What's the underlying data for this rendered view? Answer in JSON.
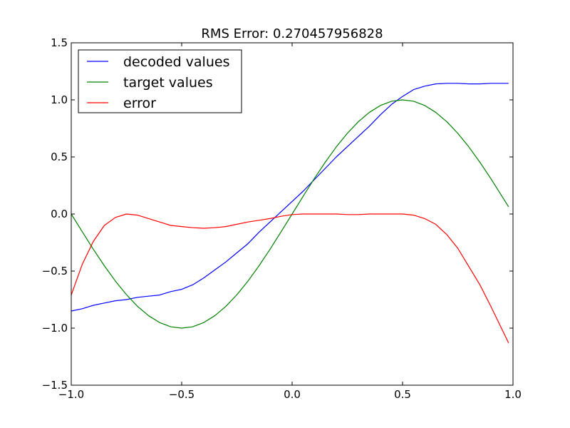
{
  "chart_data": {
    "type": "line",
    "title": "RMS Error: 0.270457956828",
    "xlabel": "",
    "ylabel": "",
    "xlim": [
      -1.0,
      1.0
    ],
    "ylim": [
      -1.5,
      1.5
    ],
    "grid": false,
    "legend_position": "top-left",
    "x_ticks": [
      -1.0,
      -0.5,
      0.0,
      0.5,
      1.0
    ],
    "x_tick_labels": [
      "−1.0",
      "−0.5",
      "0.0",
      "0.5",
      "1.0"
    ],
    "y_ticks": [
      -1.5,
      -1.0,
      -0.5,
      0.0,
      0.5,
      1.0,
      1.5
    ],
    "y_tick_labels": [
      "−1.5",
      "−1.0",
      "−0.5",
      "0.0",
      "0.5",
      "1.0",
      "1.5"
    ],
    "series": [
      {
        "name": "decoded values",
        "color": "#0000ff",
        "x": [
          -1.0,
          -0.95,
          -0.9,
          -0.85,
          -0.8,
          -0.75,
          -0.7,
          -0.65,
          -0.6,
          -0.55,
          -0.5,
          -0.45,
          -0.4,
          -0.35,
          -0.3,
          -0.25,
          -0.2,
          -0.15,
          -0.1,
          -0.05,
          0.0,
          0.05,
          0.1,
          0.15,
          0.2,
          0.25,
          0.3,
          0.35,
          0.4,
          0.45,
          0.5,
          0.55,
          0.6,
          0.65,
          0.7,
          0.75,
          0.8,
          0.85,
          0.9,
          0.95,
          0.98
        ],
        "y": [
          -0.85,
          -0.83,
          -0.8,
          -0.78,
          -0.76,
          -0.75,
          -0.73,
          -0.72,
          -0.71,
          -0.68,
          -0.66,
          -0.62,
          -0.56,
          -0.49,
          -0.42,
          -0.34,
          -0.26,
          -0.16,
          -0.07,
          0.02,
          0.11,
          0.2,
          0.3,
          0.4,
          0.5,
          0.59,
          0.68,
          0.77,
          0.87,
          0.96,
          1.03,
          1.09,
          1.12,
          1.14,
          1.145,
          1.145,
          1.14,
          1.14,
          1.145,
          1.145,
          1.145
        ]
      },
      {
        "name": "target values",
        "color": "#008000",
        "x": [
          -1.0,
          -0.95,
          -0.9,
          -0.85,
          -0.8,
          -0.75,
          -0.7,
          -0.65,
          -0.6,
          -0.55,
          -0.5,
          -0.45,
          -0.4,
          -0.35,
          -0.3,
          -0.25,
          -0.2,
          -0.15,
          -0.1,
          -0.05,
          0.0,
          0.05,
          0.1,
          0.15,
          0.2,
          0.25,
          0.3,
          0.35,
          0.4,
          0.45,
          0.5,
          0.55,
          0.6,
          0.65,
          0.7,
          0.75,
          0.8,
          0.85,
          0.9,
          0.95,
          0.98
        ],
        "y": [
          0.0,
          -0.156,
          -0.309,
          -0.454,
          -0.588,
          -0.707,
          -0.809,
          -0.891,
          -0.951,
          -0.988,
          -1.0,
          -0.988,
          -0.951,
          -0.891,
          -0.809,
          -0.707,
          -0.588,
          -0.454,
          -0.309,
          -0.156,
          0.0,
          0.156,
          0.309,
          0.454,
          0.588,
          0.707,
          0.809,
          0.891,
          0.951,
          0.988,
          1.0,
          0.988,
          0.951,
          0.891,
          0.809,
          0.707,
          0.588,
          0.454,
          0.309,
          0.156,
          0.063
        ]
      },
      {
        "name": "error",
        "color": "#ff0000",
        "x": [
          -1.0,
          -0.95,
          -0.9,
          -0.85,
          -0.8,
          -0.75,
          -0.7,
          -0.65,
          -0.6,
          -0.55,
          -0.5,
          -0.45,
          -0.4,
          -0.35,
          -0.3,
          -0.25,
          -0.2,
          -0.15,
          -0.1,
          -0.05,
          0.0,
          0.05,
          0.1,
          0.15,
          0.2,
          0.25,
          0.3,
          0.35,
          0.4,
          0.45,
          0.5,
          0.55,
          0.6,
          0.65,
          0.7,
          0.75,
          0.8,
          0.85,
          0.9,
          0.95,
          0.98
        ],
        "y": [
          -0.71,
          -0.44,
          -0.24,
          -0.1,
          -0.03,
          0.0,
          -0.01,
          -0.04,
          -0.07,
          -0.1,
          -0.11,
          -0.12,
          -0.125,
          -0.12,
          -0.11,
          -0.09,
          -0.07,
          -0.055,
          -0.04,
          -0.02,
          -0.005,
          0.0,
          0.0,
          0.0,
          0.0,
          -0.005,
          -0.005,
          0.0,
          0.0,
          0.0,
          0.0,
          -0.01,
          -0.04,
          -0.09,
          -0.18,
          -0.3,
          -0.46,
          -0.62,
          -0.81,
          -1.01,
          -1.13
        ]
      }
    ]
  }
}
